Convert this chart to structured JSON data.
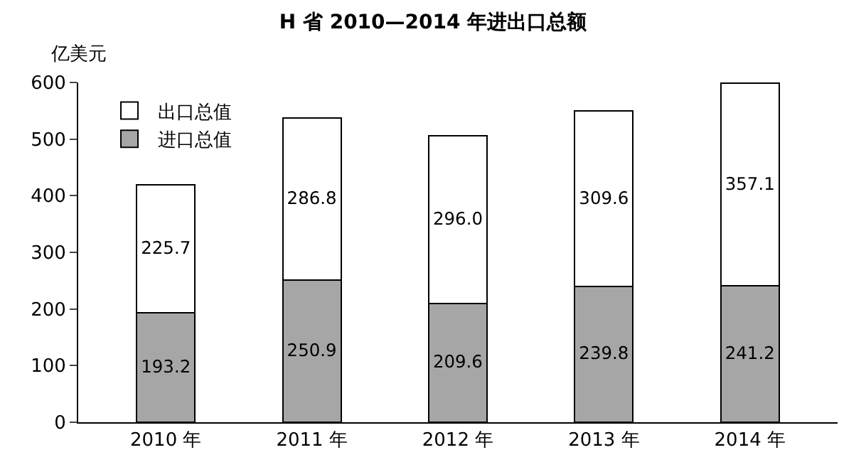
{
  "chart_data": {
    "type": "bar",
    "title": "H 省 2010—2014 年进出口总额",
    "ylabel": "亿美元",
    "stacked": true,
    "categories": [
      "2010 年",
      "2011 年",
      "2012 年",
      "2013 年",
      "2014 年"
    ],
    "series": [
      {
        "name": "进口总值",
        "color": "#a6a6a6",
        "values": [
          193.2,
          250.9,
          209.6,
          239.8,
          241.2
        ],
        "value_labels": [
          "193.2",
          "250.9",
          "209.6",
          "239.8",
          "241.2"
        ]
      },
      {
        "name": "出口总值",
        "color": "#ffffff",
        "values": [
          225.7,
          286.8,
          296.0,
          309.6,
          357.1
        ],
        "value_labels": [
          "225.7",
          "286.8",
          "296.0",
          "309.6",
          "357.1"
        ]
      }
    ],
    "ylim": [
      0,
      600
    ],
    "yticks": [
      0,
      100,
      200,
      300,
      400,
      500,
      600
    ],
    "legend": "top left"
  }
}
